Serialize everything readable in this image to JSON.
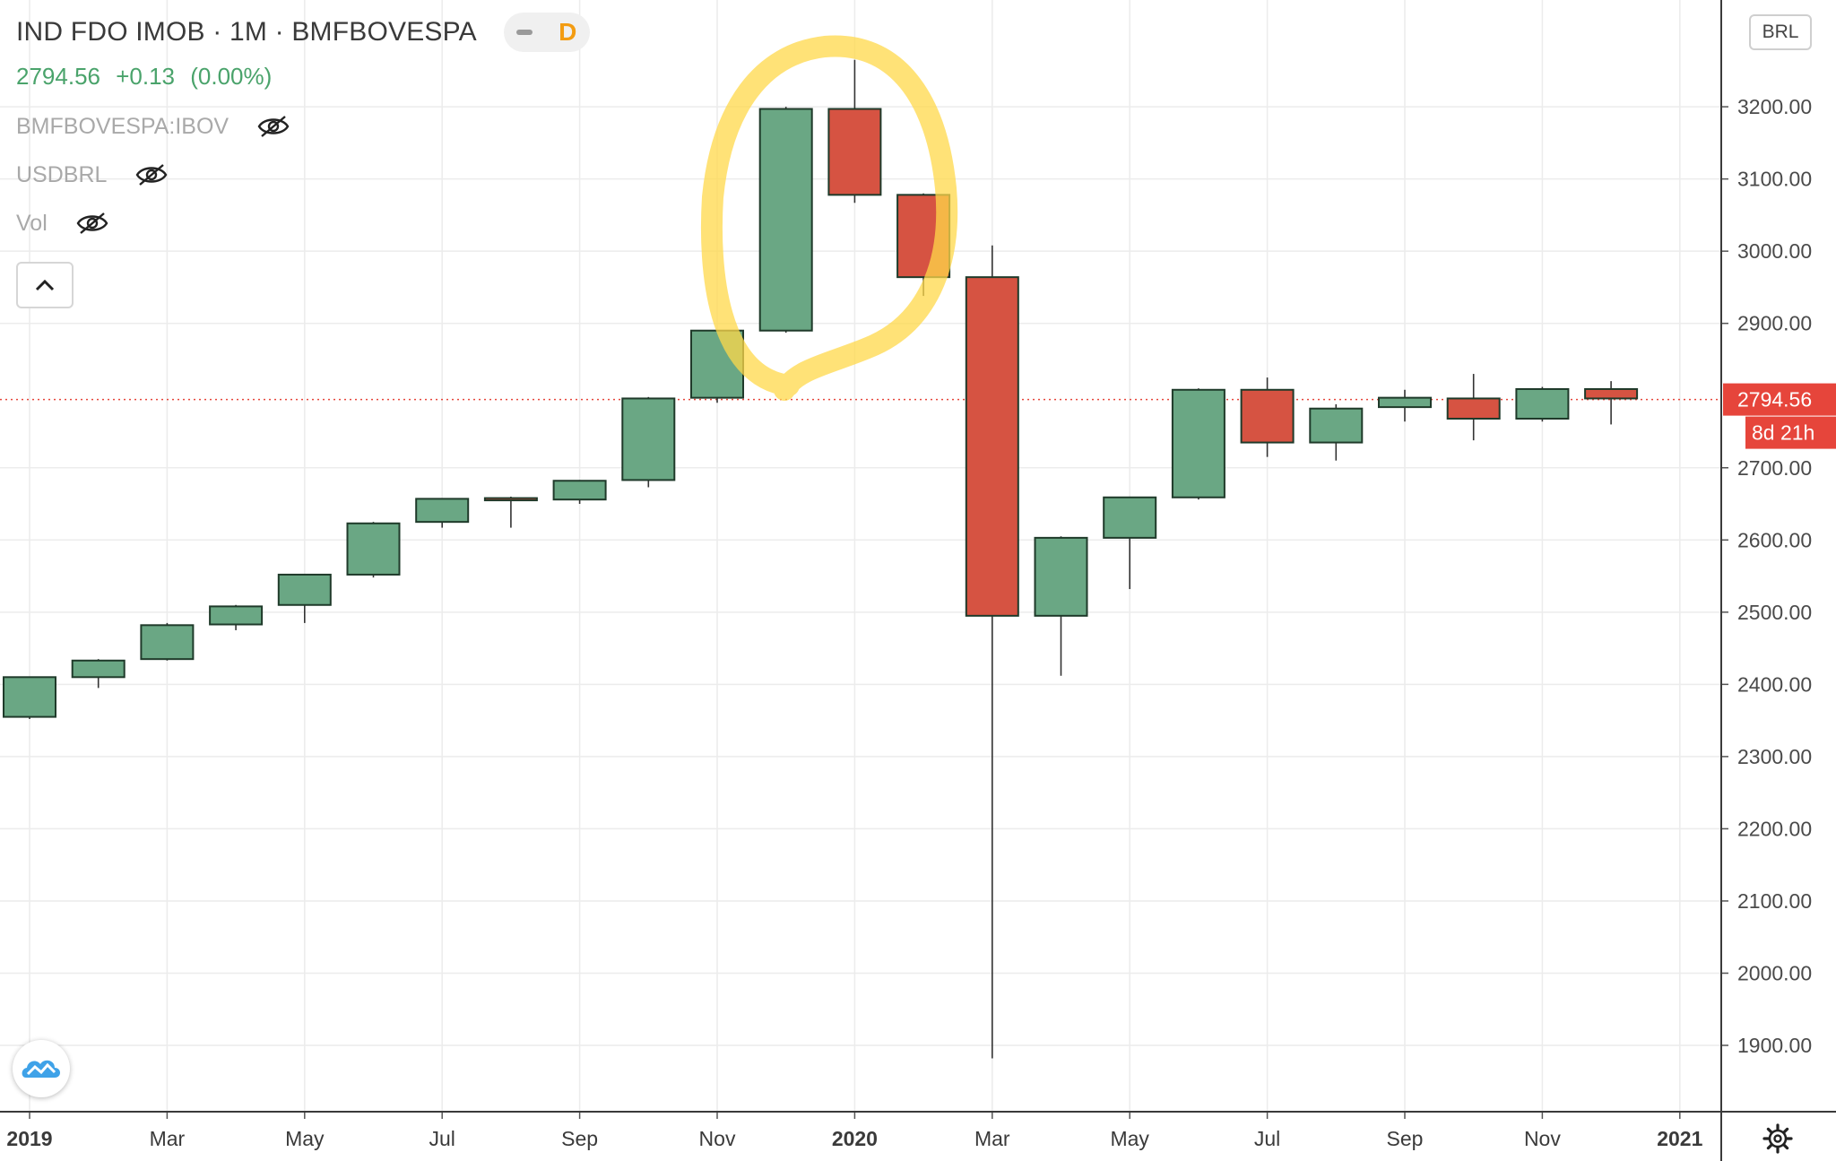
{
  "header": {
    "title": "IND FDO IMOB · 1M · BMFBOVESPA",
    "toggle_label": "D",
    "price": "2794.56",
    "change": "+0.13",
    "change_pct": "(0.00%)",
    "overlays": [
      {
        "label": "BMFBOVESPA:IBOV",
        "icon": "eye-off-icon"
      },
      {
        "label": "USDBRL",
        "icon": "eye-off-icon"
      },
      {
        "label": "Vol",
        "icon": "eye-off-icon"
      }
    ],
    "collapse_icon": "chevron-up-icon"
  },
  "price_axis": {
    "currency": "BRL",
    "ticks": [
      "3200.00",
      "3100.00",
      "3000.00",
      "2900.00",
      "2700.00",
      "2600.00",
      "2500.00",
      "2400.00",
      "2300.00",
      "2200.00",
      "2100.00",
      "2000.00",
      "1900.00"
    ],
    "last_price_label": "2794.56",
    "countdown_label": "8d 21h"
  },
  "time_axis": {
    "labels": [
      {
        "text": "2019",
        "bold": true
      },
      {
        "text": "Mar",
        "bold": false
      },
      {
        "text": "May",
        "bold": false
      },
      {
        "text": "Jul",
        "bold": false
      },
      {
        "text": "Sep",
        "bold": false
      },
      {
        "text": "Nov",
        "bold": false
      },
      {
        "text": "2020",
        "bold": true
      },
      {
        "text": "Mar",
        "bold": false
      },
      {
        "text": "May",
        "bold": false
      },
      {
        "text": "Jul",
        "bold": false
      },
      {
        "text": "Sep",
        "bold": false
      },
      {
        "text": "Nov",
        "bold": false
      },
      {
        "text": "2021",
        "bold": true
      }
    ]
  },
  "colors": {
    "up": "#6aa784",
    "down": "#d65342",
    "candle_border": "#1f3a2a",
    "highlight": "#ffd84a",
    "last_price": "#e6453b"
  },
  "chart_data": {
    "type": "candlestick",
    "interval": "1M",
    "y_range": [
      1810,
      3310
    ],
    "last_price": 2794.56,
    "candles": [
      {
        "month": "2019-01",
        "open": 2355,
        "high": 2410,
        "low": 2352,
        "close": 2410
      },
      {
        "month": "2019-02",
        "open": 2410,
        "high": 2435,
        "low": 2395,
        "close": 2433
      },
      {
        "month": "2019-03",
        "open": 2435,
        "high": 2485,
        "low": 2433,
        "close": 2482
      },
      {
        "month": "2019-04",
        "open": 2483,
        "high": 2510,
        "low": 2475,
        "close": 2508
      },
      {
        "month": "2019-05",
        "open": 2510,
        "high": 2552,
        "low": 2485,
        "close": 2552
      },
      {
        "month": "2019-06",
        "open": 2552,
        "high": 2625,
        "low": 2548,
        "close": 2623
      },
      {
        "month": "2019-07",
        "open": 2625,
        "high": 2658,
        "low": 2617,
        "close": 2657
      },
      {
        "month": "2019-08",
        "open": 2658,
        "high": 2660,
        "low": 2617,
        "close": 2656
      },
      {
        "month": "2019-09",
        "open": 2656,
        "high": 2683,
        "low": 2650,
        "close": 2682
      },
      {
        "month": "2019-10",
        "open": 2683,
        "high": 2798,
        "low": 2673,
        "close": 2796
      },
      {
        "month": "2019-11",
        "open": 2797,
        "high": 2890,
        "low": 2790,
        "close": 2890
      },
      {
        "month": "2019-12",
        "open": 2890,
        "high": 3200,
        "low": 2887,
        "close": 3197
      },
      {
        "month": "2020-01",
        "open": 3197,
        "high": 3265,
        "low": 3067,
        "close": 3078
      },
      {
        "month": "2020-02",
        "open": 3078,
        "high": 3080,
        "low": 2938,
        "close": 2964
      },
      {
        "month": "2020-03",
        "open": 2964,
        "high": 3008,
        "low": 1882,
        "close": 2495
      },
      {
        "month": "2020-04",
        "open": 2495,
        "high": 2605,
        "low": 2412,
        "close": 2603
      },
      {
        "month": "2020-05",
        "open": 2603,
        "high": 2660,
        "low": 2532,
        "close": 2659
      },
      {
        "month": "2020-06",
        "open": 2659,
        "high": 2810,
        "low": 2656,
        "close": 2808
      },
      {
        "month": "2020-07",
        "open": 2808,
        "high": 2825,
        "low": 2715,
        "close": 2735
      },
      {
        "month": "2020-08",
        "open": 2735,
        "high": 2788,
        "low": 2710,
        "close": 2782
      },
      {
        "month": "2020-09",
        "open": 2784,
        "high": 2808,
        "low": 2764,
        "close": 2797
      },
      {
        "month": "2020-10",
        "open": 2796,
        "high": 2830,
        "low": 2738,
        "close": 2768
      },
      {
        "month": "2020-11",
        "open": 2768,
        "high": 2812,
        "low": 2764,
        "close": 2809
      },
      {
        "month": "2020-12",
        "open": 2809,
        "high": 2820,
        "low": 2760,
        "close": 2796
      }
    ],
    "annotation": {
      "type": "hand-drawn-circle",
      "around_months": [
        "2019-12",
        "2020-01",
        "2020-02"
      ]
    }
  }
}
